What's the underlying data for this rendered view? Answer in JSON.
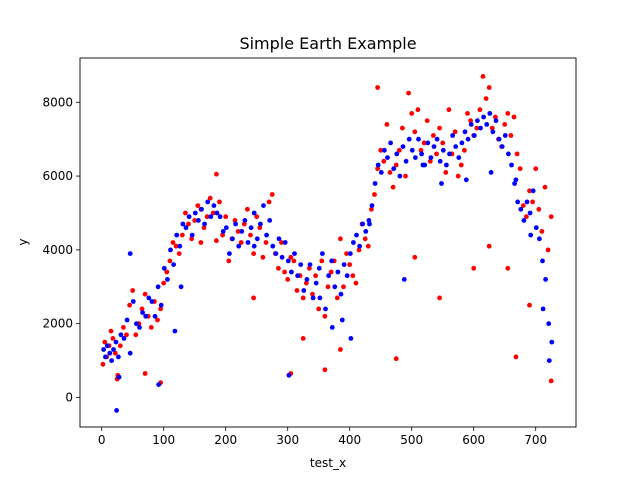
{
  "chart_data": {
    "type": "scatter",
    "title": "Simple Earth Example",
    "xlabel": "test_x",
    "ylabel": "y",
    "xlim": [
      -35,
      765
    ],
    "ylim": [
      -800,
      9200
    ],
    "xticks": [
      0,
      100,
      200,
      300,
      400,
      500,
      600,
      700
    ],
    "yticks": [
      0,
      2000,
      4000,
      6000,
      8000
    ],
    "grid": false,
    "series": [
      {
        "color": "#ff0000",
        "x": [
          2,
          5,
          8,
          12,
          15,
          18,
          22,
          26,
          30,
          35,
          40,
          45,
          50,
          55,
          60,
          65,
          70,
          75,
          80,
          85,
          90,
          95,
          100,
          105,
          110,
          115,
          120,
          125,
          130,
          135,
          140,
          145,
          150,
          155,
          160,
          165,
          170,
          175,
          180,
          185,
          190,
          195,
          200,
          205,
          210,
          215,
          220,
          225,
          230,
          235,
          240,
          245,
          250,
          255,
          260,
          265,
          270,
          275,
          280,
          285,
          290,
          295,
          300,
          305,
          310,
          315,
          320,
          325,
          330,
          335,
          340,
          345,
          350,
          355,
          360,
          365,
          370,
          375,
          380,
          385,
          390,
          395,
          400,
          405,
          410,
          415,
          420,
          425,
          430,
          435,
          440,
          445,
          450,
          455,
          460,
          465,
          470,
          475,
          480,
          485,
          490,
          495,
          500,
          505,
          510,
          515,
          520,
          525,
          530,
          535,
          540,
          545,
          550,
          555,
          560,
          565,
          570,
          575,
          580,
          585,
          590,
          595,
          600,
          605,
          610,
          615,
          620,
          625,
          630,
          635,
          640,
          645,
          650,
          655,
          660,
          665,
          670,
          675,
          680,
          685,
          690,
          695,
          700,
          705,
          710,
          715,
          720,
          725,
          25,
          70,
          95,
          160,
          185,
          245,
          305,
          325,
          360,
          385,
          445,
          475,
          505,
          545,
          600,
          625,
          655,
          668,
          690,
          725
        ],
        "y": [
          900,
          1500,
          1100,
          1400,
          1800,
          1600,
          1200,
          600,
          1400,
          1900,
          1700,
          2500,
          2900,
          1700,
          2000,
          2400,
          2800,
          2200,
          1900,
          2600,
          2100,
          2400,
          3100,
          3400,
          3700,
          4200,
          4100,
          3900,
          4400,
          5000,
          4700,
          4300,
          4800,
          5200,
          5100,
          4600,
          4900,
          5400,
          5000,
          6050,
          5300,
          4400,
          4900,
          3700,
          4300,
          4800,
          4500,
          4200,
          4700,
          5100,
          4400,
          3900,
          4900,
          4600,
          3800,
          4200,
          5300,
          5500,
          3900,
          3500,
          4200,
          3400,
          3200,
          3800,
          3700,
          2900,
          3300,
          2700,
          3100,
          3500,
          2800,
          3300,
          2400,
          3700,
          2200,
          3000,
          3400,
          3700,
          2700,
          4300,
          3000,
          3900,
          3600,
          3300,
          3100,
          4000,
          4700,
          4300,
          4100,
          5100,
          5500,
          6200,
          6700,
          6400,
          7400,
          6100,
          5700,
          6300,
          6700,
          7300,
          6000,
          8250,
          7700,
          7200,
          7800,
          6700,
          6900,
          7500,
          6400,
          7100,
          6600,
          7300,
          6900,
          6100,
          7800,
          6600,
          7200,
          6000,
          6300,
          6700,
          7700,
          7500,
          7100,
          7300,
          7800,
          8700,
          8100,
          8400,
          7300,
          7600,
          7000,
          6800,
          7400,
          7700,
          7100,
          7600,
          6600,
          6200,
          5200,
          4900,
          5600,
          5300,
          6200,
          5100,
          4500,
          5700,
          4000,
          4900,
          500,
          650,
          400,
          4200,
          4250,
          2700,
          650,
          1600,
          750,
          1300,
          8400,
          1050,
          3800,
          2700,
          3500,
          4100,
          3500,
          1100,
          2500,
          450
        ]
      },
      {
        "color": "#0000ff",
        "x": [
          3,
          6,
          9,
          13,
          16,
          19,
          23,
          27,
          31,
          36,
          41,
          46,
          51,
          56,
          61,
          66,
          71,
          76,
          81,
          86,
          91,
          96,
          101,
          106,
          111,
          116,
          121,
          126,
          131,
          136,
          141,
          146,
          151,
          156,
          161,
          166,
          171,
          176,
          181,
          186,
          191,
          196,
          201,
          206,
          211,
          216,
          221,
          226,
          231,
          236,
          241,
          246,
          251,
          256,
          261,
          266,
          271,
          276,
          281,
          286,
          291,
          296,
          301,
          306,
          311,
          316,
          321,
          326,
          331,
          336,
          341,
          346,
          351,
          356,
          361,
          366,
          371,
          376,
          381,
          386,
          391,
          396,
          401,
          406,
          411,
          416,
          421,
          426,
          431,
          436,
          441,
          446,
          451,
          456,
          461,
          466,
          471,
          476,
          481,
          486,
          491,
          496,
          501,
          506,
          511,
          516,
          521,
          526,
          531,
          536,
          541,
          546,
          551,
          556,
          561,
          566,
          571,
          576,
          581,
          586,
          591,
          596,
          601,
          606,
          611,
          616,
          621,
          626,
          631,
          636,
          641,
          646,
          651,
          656,
          661,
          666,
          671,
          676,
          681,
          686,
          691,
          696,
          701,
          706,
          711,
          716,
          721,
          726,
          24,
          28,
          46,
          92,
          118,
          128,
          246,
          302,
          352,
          372,
          388,
          402,
          432,
          488,
          518,
          548,
          588,
          628,
          668,
          692,
          712,
          722
        ],
        "y": [
          1300,
          1100,
          1400,
          1200,
          1000,
          1300,
          1500,
          1100,
          1700,
          1600,
          2100,
          3900,
          2600,
          2000,
          1900,
          2300,
          2200,
          2700,
          2600,
          2200,
          3000,
          2500,
          3500,
          3200,
          4000,
          3600,
          4400,
          4100,
          4700,
          4600,
          4900,
          4400,
          5000,
          4800,
          5100,
          4700,
          5300,
          4900,
          5200,
          5000,
          4900,
          4500,
          4600,
          3900,
          4300,
          4700,
          4100,
          4500,
          4800,
          4200,
          4600,
          5000,
          4300,
          4700,
          5200,
          4400,
          4800,
          4100,
          3900,
          4300,
          3800,
          4200,
          3700,
          3400,
          3900,
          3300,
          3600,
          2900,
          3200,
          3600,
          2700,
          3100,
          3500,
          3900,
          2400,
          3300,
          3700,
          3000,
          3400,
          2800,
          3600,
          3300,
          3900,
          4200,
          4400,
          4100,
          4700,
          4500,
          4800,
          5200,
          5800,
          6300,
          6100,
          6700,
          6500,
          6900,
          6200,
          6600,
          6000,
          6800,
          6400,
          7000,
          6700,
          6500,
          7000,
          6600,
          6300,
          6900,
          6500,
          6800,
          7000,
          6400,
          6700,
          6300,
          6600,
          7100,
          6800,
          6500,
          6900,
          7200,
          7000,
          7400,
          7100,
          7500,
          7300,
          7600,
          7400,
          7700,
          7200,
          7500,
          7000,
          6800,
          7100,
          6600,
          6300,
          5800,
          5300,
          5100,
          4800,
          5300,
          5000,
          5600,
          4600,
          4300,
          3700,
          3200,
          2000,
          1500,
          -350,
          550,
          1200,
          350,
          1800,
          3000,
          4100,
          600,
          2700,
          1900,
          2100,
          1600,
          4700,
          3200,
          6300,
          5800,
          5900,
          6100,
          5900,
          4400,
          2400,
          1000
        ]
      }
    ]
  }
}
